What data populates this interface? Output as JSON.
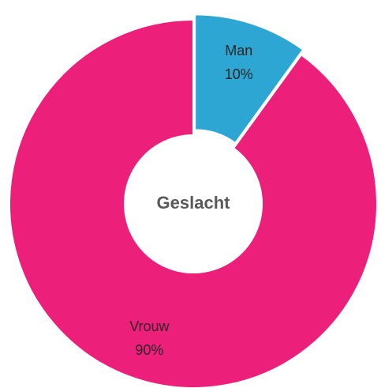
{
  "chart_data": {
    "type": "donut",
    "center_label": "Geslacht",
    "categories": [
      "Man",
      "Vrouw"
    ],
    "values": [
      10,
      90
    ],
    "value_labels": [
      "10%",
      "90%"
    ],
    "colors": [
      "#2ea6d3",
      "#ec1f7b"
    ]
  }
}
